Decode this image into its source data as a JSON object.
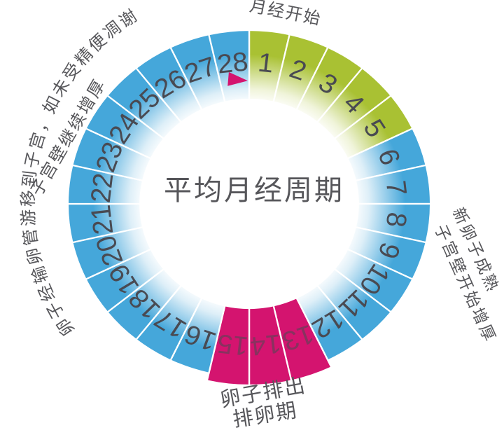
{
  "center_title": "平均月经周期",
  "labels": {
    "top": "月经开始",
    "right_line1": "新卵子成熟",
    "right_line2": "子宫壁开始增厚",
    "left_line1": "卵子经输卵管游移到子宫，如未受精便凋谢",
    "left_line2": "子宫壁继续增厚",
    "bottom_line1": "卵子排出",
    "bottom_line2": "排卵期"
  },
  "wheel": {
    "total_days": 28,
    "days": [
      1,
      2,
      3,
      4,
      5,
      6,
      7,
      8,
      9,
      10,
      11,
      12,
      13,
      14,
      15,
      16,
      17,
      18,
      19,
      20,
      21,
      22,
      23,
      24,
      25,
      26,
      27,
      28
    ],
    "segments": [
      {
        "days": "1-5",
        "color_key": "menstruation"
      },
      {
        "days": "6-12",
        "color_key": "cycle"
      },
      {
        "days": "13-15",
        "color_key": "ovulation"
      },
      {
        "days": "16-28",
        "color_key": "cycle"
      }
    ],
    "marker": "right-pointing triangle at day 28"
  },
  "colors": {
    "menstruation": "#a9c133",
    "cycle": "#45a7da",
    "ovulation": "#d4146f",
    "arrow": "#d4146f",
    "number": "#494a52",
    "label_text": "#57575b",
    "title_text": "#56565a"
  }
}
